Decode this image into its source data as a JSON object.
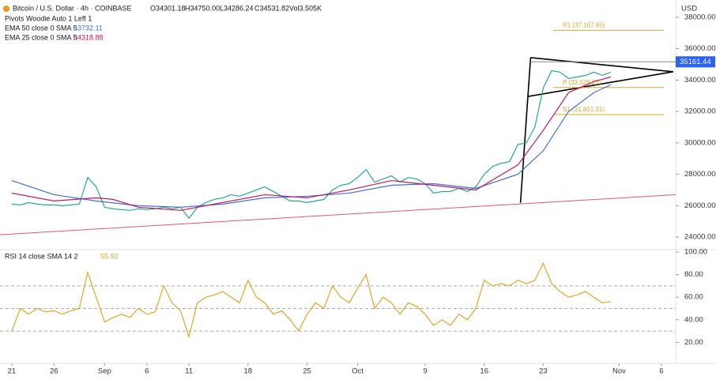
{
  "chart_data": [
    {
      "type": "line",
      "title": "Bitcoin / U.S. Dollar · 4h · COINBASE",
      "ohlc": [
        "O34301.18",
        "H34750.00",
        "L34286.24",
        "C34531.82",
        "Vol3.505K"
      ],
      "indicator": "Pivots Woodie Auto 1 Left 1",
      "y_unit": "USD",
      "ylim": [
        23250,
        39100
      ],
      "xlim": [
        -1.4,
        78.7
      ],
      "yticks": [
        {
          "value": 24000,
          "label": "24000.00"
        },
        {
          "value": 26000,
          "label": "26000.00"
        },
        {
          "value": 28000,
          "label": "28000.00"
        },
        {
          "value": 30000,
          "label": "30000.00"
        },
        {
          "value": 32000,
          "label": "32000.00"
        },
        {
          "value": 34000,
          "label": "34000.00"
        },
        {
          "value": 36000,
          "label": "36000.00"
        },
        {
          "value": 38000,
          "label": "38000.00"
        }
      ],
      "grid": false,
      "last_price": 35161.44,
      "x": [
        0,
        1,
        2,
        3,
        4,
        5,
        6,
        7,
        8,
        9,
        10,
        11,
        12,
        13,
        14,
        15,
        16,
        17,
        18,
        19,
        20,
        21,
        22,
        23,
        24,
        25,
        26,
        27,
        28,
        29,
        30,
        31,
        32,
        33,
        34,
        35,
        36,
        37,
        38,
        39,
        40,
        41,
        42,
        43,
        44,
        45,
        46,
        47,
        48,
        49,
        50,
        51,
        52,
        53,
        54,
        55,
        56,
        57,
        58,
        59,
        60,
        61,
        62,
        63,
        64,
        65,
        66,
        67,
        68,
        69,
        70,
        71
      ],
      "series": [
        {
          "color": "#26a69a",
          "values": [
            26100,
            26050,
            26200,
            26100,
            26050,
            26050,
            26000,
            26050,
            26100,
            27800,
            27200,
            25900,
            25800,
            25750,
            25700,
            25800,
            25750,
            25800,
            25900,
            25800,
            25900,
            25200,
            25900,
            26200,
            26400,
            26500,
            26700,
            26600,
            26800,
            27000,
            27200,
            26900,
            26600,
            26300,
            26300,
            26200,
            26300,
            26400,
            27000,
            27300,
            27400,
            27800,
            28300,
            27500,
            27700,
            27900,
            27500,
            27800,
            27700,
            27400,
            26800,
            26900,
            26900,
            27100,
            26900,
            27200,
            28000,
            28500,
            28700,
            28800,
            29900,
            30000,
            31000,
            33500,
            34600,
            34500,
            34100,
            34200,
            34300,
            34500,
            34300,
            34500
          ]
        },
        {
          "name": "EMA 50 close 0 SMA 5",
          "legend_value": "33732.11",
          "color": "#3f6fd8",
          "x": [
            0,
            5,
            10,
            15,
            20,
            25,
            30,
            35,
            40,
            45,
            50,
            55,
            60,
            63,
            66,
            69,
            71
          ],
          "values": [
            27600,
            26700,
            26300,
            26000,
            25900,
            26100,
            26500,
            26600,
            26800,
            27300,
            27400,
            27100,
            28000,
            29500,
            32000,
            33200,
            33700
          ]
        },
        {
          "name": "EMA 25 close 0 SMA 5",
          "legend_value": "34318.88",
          "color": "#c2185b",
          "x": [
            0,
            5,
            10,
            12,
            15,
            20,
            25,
            30,
            35,
            40,
            45,
            50,
            55,
            60,
            63,
            66,
            69,
            71
          ],
          "values": [
            26800,
            26300,
            26500,
            26400,
            25900,
            25700,
            26200,
            26700,
            26500,
            27000,
            27600,
            27300,
            27000,
            28600,
            30800,
            33200,
            33900,
            34200
          ]
        }
      ],
      "levels": [
        {
          "label": "R1 (37,167.65)",
          "value": 37167.65
        },
        {
          "label": "P (33,528.27)",
          "value": 33528.27
        },
        {
          "label": "S1 (31,801.31)",
          "value": 31801.31
        }
      ],
      "trendlines": [
        {
          "color": "#e05a6a",
          "x": [
            -1.4,
            78.7
          ],
          "values": [
            24150,
            26700
          ]
        },
        {
          "color": "#000000",
          "x": [
            60.3,
            61.5
          ],
          "values": [
            26180,
            35430
          ]
        },
        {
          "color": "#000000",
          "x": [
            61.5,
            78.4
          ],
          "values": [
            35430,
            34530
          ]
        },
        {
          "color": "#000000",
          "x": [
            61.2,
            78.4
          ],
          "values": [
            32960,
            34530
          ]
        }
      ]
    },
    {
      "type": "line",
      "title": "RSI 14 close SMA 14 2",
      "legend_value": "55.92",
      "ylim": [
        1.4,
        100.7
      ],
      "xlim": [
        -1.4,
        78.7
      ],
      "yticks": [
        {
          "value": 20,
          "label": "20.00"
        },
        {
          "value": 40,
          "label": "40.00"
        },
        {
          "value": 60,
          "label": "60.00"
        },
        {
          "value": 80,
          "label": "80.00"
        },
        {
          "value": 100,
          "label": "100.00"
        }
      ],
      "reference_lines": [
        70,
        50,
        30
      ],
      "xticks": [
        {
          "value": 0,
          "label": "21"
        },
        {
          "value": 5,
          "label": "26"
        },
        {
          "value": 11,
          "label": "Sep"
        },
        {
          "value": 16,
          "label": "6"
        },
        {
          "value": 21,
          "label": "11"
        },
        {
          "value": 28,
          "label": "18"
        },
        {
          "value": 35,
          "label": "25"
        },
        {
          "value": 41,
          "label": "Oct"
        },
        {
          "value": 49,
          "label": "9"
        },
        {
          "value": 56,
          "label": "16"
        },
        {
          "value": 63,
          "label": "23"
        },
        {
          "value": 72,
          "label": "Nov"
        },
        {
          "value": 77,
          "label": "6"
        }
      ],
      "x": [
        0,
        1,
        2,
        3,
        4,
        5,
        6,
        7,
        8,
        9,
        10,
        11,
        12,
        13,
        14,
        15,
        16,
        17,
        18,
        19,
        20,
        21,
        22,
        23,
        24,
        25,
        26,
        27,
        28,
        29,
        30,
        31,
        32,
        33,
        34,
        35,
        36,
        37,
        38,
        39,
        40,
        41,
        42,
        43,
        44,
        45,
        46,
        47,
        48,
        49,
        50,
        51,
        52,
        53,
        54,
        55,
        56,
        57,
        58,
        59,
        60,
        61,
        62,
        63,
        64,
        65,
        66,
        67,
        68,
        69,
        70,
        71
      ],
      "series": [
        {
          "color": "#e0a526",
          "values": [
            30,
            50,
            45,
            50,
            47,
            48,
            45,
            48,
            50,
            82,
            60,
            38,
            42,
            45,
            42,
            50,
            45,
            47,
            70,
            55,
            48,
            25,
            55,
            60,
            62,
            65,
            60,
            55,
            75,
            60,
            55,
            45,
            48,
            40,
            30,
            45,
            55,
            50,
            70,
            60,
            55,
            68,
            80,
            50,
            60,
            55,
            45,
            55,
            52,
            45,
            35,
            40,
            35,
            45,
            40,
            50,
            75,
            70,
            72,
            70,
            75,
            72,
            75,
            90,
            72,
            65,
            60,
            62,
            65,
            60,
            55,
            56
          ]
        }
      ]
    }
  ]
}
